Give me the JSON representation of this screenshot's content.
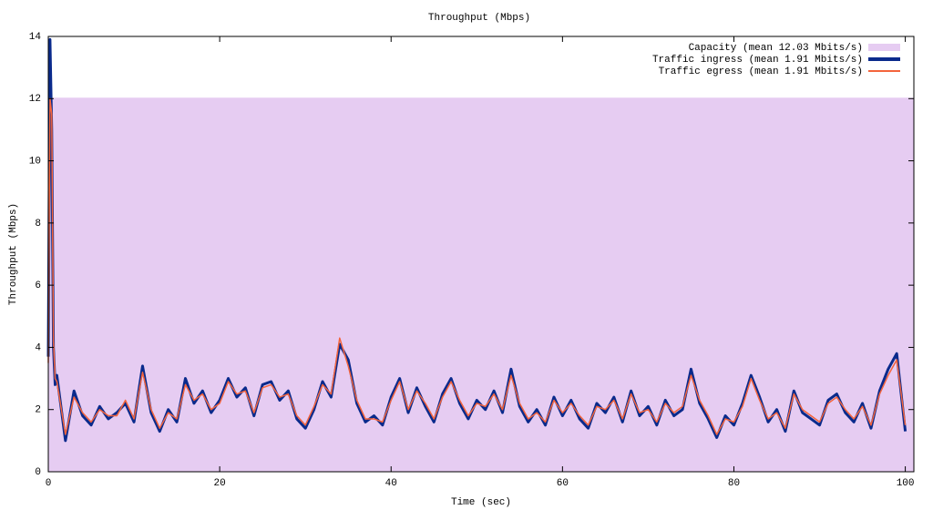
{
  "chart_data": {
    "type": "line",
    "title": "Throughput (Mbps)",
    "xlabel": "Time (sec)",
    "ylabel": "Throughput (Mbps)",
    "xlim": [
      0,
      101
    ],
    "ylim": [
      0,
      14
    ],
    "xticks": [
      0,
      20,
      40,
      60,
      80,
      100
    ],
    "yticks": [
      0,
      2,
      4,
      6,
      8,
      10,
      12,
      14
    ],
    "legend": "upper right",
    "x": [
      0,
      0.2,
      0.4,
      0.6,
      0.8,
      1,
      2,
      3,
      4,
      5,
      6,
      7,
      8,
      9,
      10,
      11,
      12,
      13,
      14,
      15,
      16,
      17,
      18,
      19,
      20,
      21,
      22,
      23,
      24,
      25,
      26,
      27,
      28,
      29,
      30,
      31,
      32,
      33,
      34,
      35,
      36,
      37,
      38,
      39,
      40,
      41,
      42,
      43,
      44,
      45,
      46,
      47,
      48,
      49,
      50,
      51,
      52,
      53,
      54,
      55,
      56,
      57,
      58,
      59,
      60,
      61,
      62,
      63,
      64,
      65,
      66,
      67,
      68,
      69,
      70,
      71,
      72,
      73,
      74,
      75,
      76,
      77,
      78,
      79,
      80,
      81,
      82,
      83,
      84,
      85,
      86,
      87,
      88,
      89,
      90,
      91,
      92,
      93,
      94,
      95,
      96,
      97,
      98,
      99,
      100
    ],
    "series": [
      {
        "name": "Capacity (mean 12.03 Mbits/s)",
        "kind": "area",
        "color": "#e6ccf2",
        "x": [
          0,
          101
        ],
        "values": [
          12.03,
          12.03
        ]
      },
      {
        "name": "Traffic ingress (mean 1.91 Mbits/s)",
        "kind": "line",
        "color": "#0a2a8c",
        "values": [
          3.7,
          13.9,
          11.0,
          4.0,
          2.8,
          3.1,
          1.0,
          2.6,
          1.8,
          1.5,
          2.1,
          1.7,
          1.9,
          2.2,
          1.6,
          3.4,
          1.9,
          1.3,
          2.0,
          1.6,
          3.0,
          2.2,
          2.6,
          1.9,
          2.3,
          3.0,
          2.4,
          2.7,
          1.8,
          2.8,
          2.9,
          2.3,
          2.6,
          1.7,
          1.4,
          2.0,
          2.9,
          2.4,
          4.1,
          3.6,
          2.2,
          1.6,
          1.8,
          1.5,
          2.4,
          3.0,
          1.9,
          2.7,
          2.1,
          1.6,
          2.5,
          3.0,
          2.2,
          1.7,
          2.3,
          2.0,
          2.6,
          1.9,
          3.3,
          2.1,
          1.6,
          2.0,
          1.5,
          2.4,
          1.8,
          2.3,
          1.7,
          1.4,
          2.2,
          1.9,
          2.4,
          1.6,
          2.6,
          1.8,
          2.1,
          1.5,
          2.3,
          1.8,
          2.0,
          3.3,
          2.2,
          1.7,
          1.1,
          1.8,
          1.5,
          2.2,
          3.1,
          2.4,
          1.6,
          2.0,
          1.3,
          2.6,
          1.9,
          1.7,
          1.5,
          2.3,
          2.5,
          1.9,
          1.6,
          2.2,
          1.4,
          2.6,
          3.3,
          3.8,
          1.3
        ]
      },
      {
        "name": "Traffic egress (mean 1.91 Mbits/s)",
        "kind": "line",
        "color": "#f4643c",
        "values": [
          3.5,
          12.0,
          11.5,
          4.2,
          3.0,
          2.9,
          1.2,
          2.4,
          1.9,
          1.6,
          2.0,
          1.8,
          1.8,
          2.3,
          1.7,
          3.2,
          2.0,
          1.4,
          1.9,
          1.7,
          2.8,
          2.3,
          2.5,
          2.0,
          2.2,
          2.9,
          2.5,
          2.6,
          1.9,
          2.7,
          2.8,
          2.4,
          2.5,
          1.8,
          1.5,
          2.1,
          2.8,
          2.5,
          4.3,
          3.4,
          2.3,
          1.7,
          1.7,
          1.6,
          2.3,
          2.9,
          2.0,
          2.6,
          2.2,
          1.7,
          2.4,
          2.9,
          2.3,
          1.8,
          2.2,
          2.1,
          2.5,
          2.0,
          3.1,
          2.2,
          1.7,
          1.9,
          1.6,
          2.3,
          1.9,
          2.2,
          1.8,
          1.5,
          2.1,
          2.0,
          2.3,
          1.7,
          2.5,
          1.9,
          2.0,
          1.6,
          2.2,
          1.9,
          2.1,
          3.1,
          2.3,
          1.8,
          1.2,
          1.7,
          1.6,
          2.1,
          3.0,
          2.3,
          1.7,
          1.9,
          1.4,
          2.5,
          2.0,
          1.8,
          1.6,
          2.2,
          2.4,
          2.0,
          1.7,
          2.1,
          1.5,
          2.5,
          3.1,
          3.6,
          1.5
        ]
      }
    ]
  }
}
